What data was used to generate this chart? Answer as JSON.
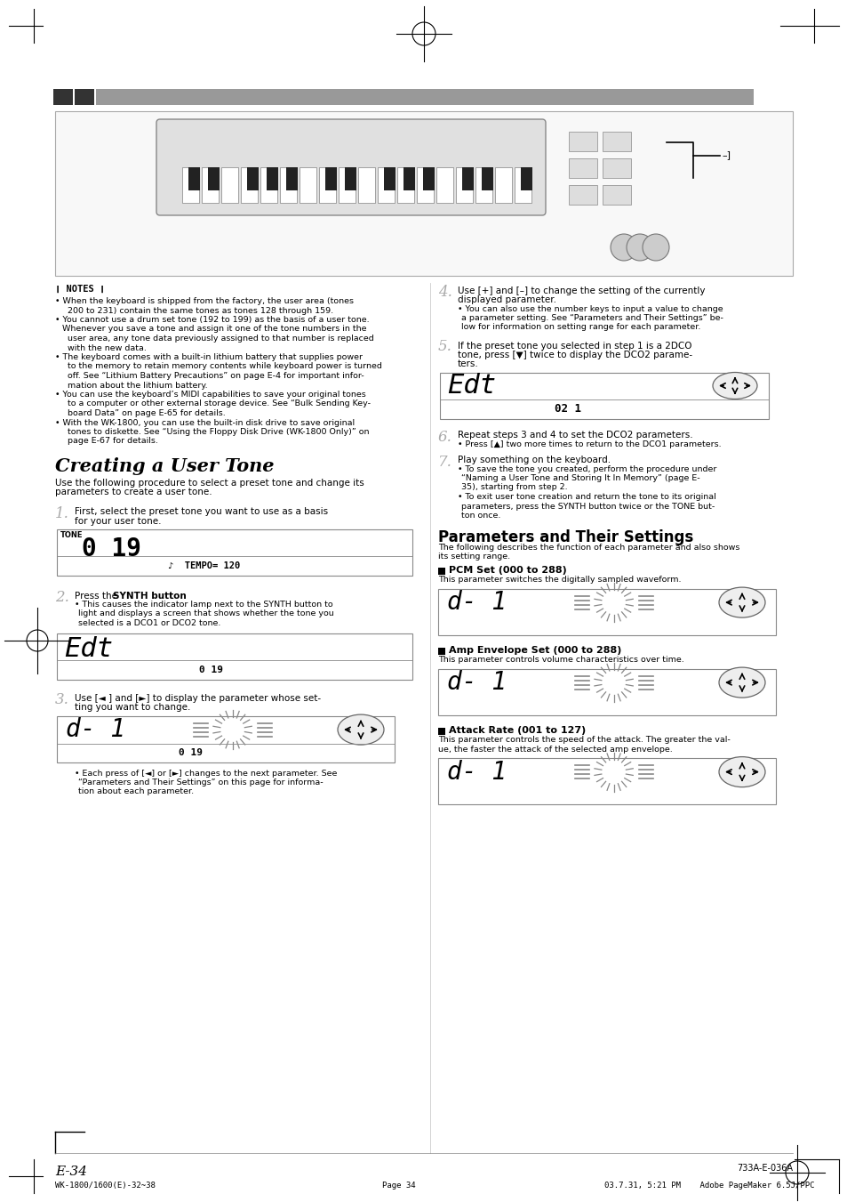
{
  "page_bg": "#ffffff",
  "page_num": "E-34",
  "footer_left": "WK-1800/1600(E)-32~38",
  "footer_center": "Page 34",
  "footer_right": "03.7.31, 5:21 PM    Adobe PageMaker 6.5J/PPC",
  "notes_items": [
    "When the keyboard is shipped from the factory, the user area (tones\n200 to 231) contain the same tones as tones 128 through 159.",
    "You cannot use a drum set tone (192 to 199) as the basis of a user tone.",
    "Whenever you save a tone and assign it one of the tone numbers in the\nuser area, any tone data previously assigned to that number is replaced\nwith the new data.",
    "The keyboard comes with a built-in lithium battery that supplies power\nto the memory to retain memory contents while keyboard power is turned\noff. See “Lithium Battery Precautions” on page E-4 for important infor-\nmation about the lithium battery.",
    "You can use the keyboard’s MIDI capabilities to save your original tones\nto a computer or other external storage device. See “Bulk Sending Key-\nboard Data” on page E-65 for details.",
    "With the WK-1800, you can use the built-in disk drive to save original\ntones to diskette. See “Using the Floppy Disk Drive (WK-1800 Only)” on\npage E-67 for details."
  ],
  "section_title": "Creating a User Tone",
  "section_intro": "Use the following procedure to select a preset tone and change its\nparameters to create a user tone.",
  "step2_bullet": "This causes the indicator lamp next to the SYNTH button to\nlight and displays a screen that shows whether the tone you\nselected is a DCO1 or DCO2 tone.",
  "step3_text": "Use [◄ ] and [►] to display the parameter whose set-\nting you want to change.",
  "step3_bullet": "Each press of [◄] or [►] changes to the next parameter. See\n“Parameters and Their Settings” on this page for informa-\ntion about each parameter.",
  "step4_text": "Use [+] and [–] to change the setting of the currently\ndisplayed parameter.",
  "step4_bullet": "You can also use the number keys to input a value to change\na parameter setting. See “Parameters and Their Settings” be-\nlow for information on setting range for each parameter.",
  "step5_text": "If the preset tone you selected in step 1 is a 2DCO\ntone, press [▼] twice to display the DCO2 parame-\nters.",
  "step6_text": "Repeat steps 3 and 4 to set the DCO2 parameters.",
  "step6_bullet": "Press [▲] two more times to return to the DCO1 parameters.",
  "step7_text": "Play something on the keyboard.",
  "step7_bullets": [
    "To save the tone you created, perform the procedure under\n“Naming a User Tone and Storing It In Memory” (page E-\n35), starting from step 2.",
    "To exit user tone creation and return the tone to its original\nparameters, press the SYNTH button twice or the TONE but-\nton once."
  ],
  "params_title": "Parameters and Their Settings",
  "params_intro": "The following describes the function of each parameter and also shows\nits setting range.",
  "pcm_title": "PCM Set (000 to 288)",
  "pcm_text": "This parameter switches the digitally sampled waveform.",
  "amp_title": "Amp Envelope Set (000 to 288)",
  "amp_text": "This parameter controls volume characteristics over time.",
  "attack_title": "Attack Rate (001 to 127)",
  "attack_text": "This parameter controls the speed of the attack. The greater the val-\nue, the faster the attack of the selected amp envelope."
}
